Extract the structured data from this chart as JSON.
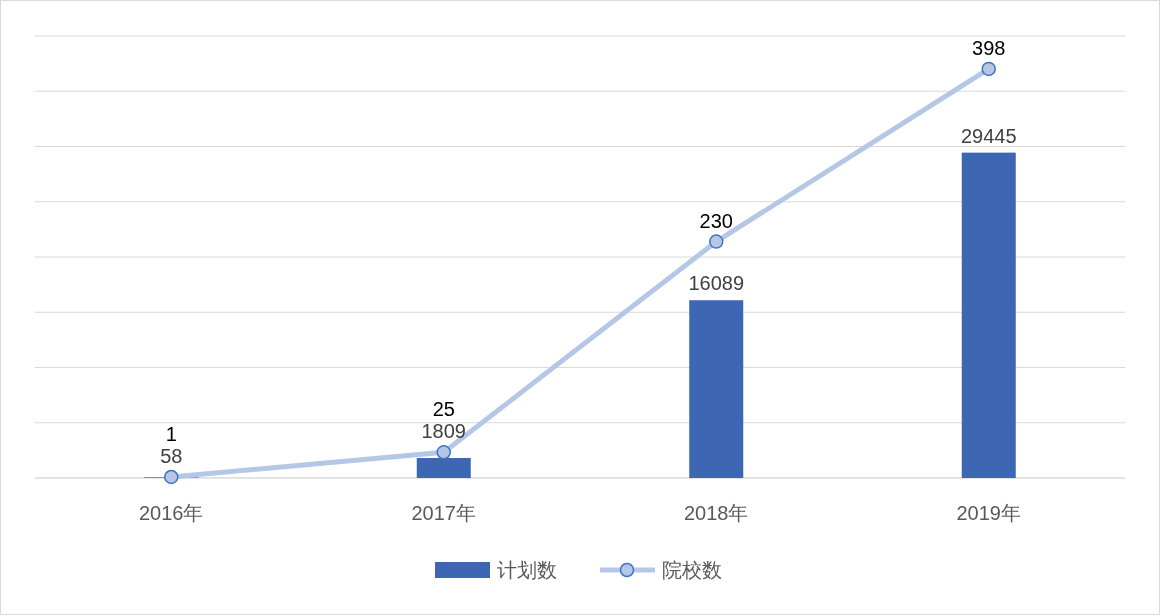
{
  "chart_data": {
    "type": "bar",
    "categories": [
      "2016年",
      "2017年",
      "2018年",
      "2019年"
    ],
    "series": [
      {
        "name": "计划数",
        "color": "#3d67b3",
        "values": [
          58,
          1809,
          16089,
          29445
        ]
      },
      {
        "name": "院校数",
        "type": "line",
        "axis": "y2",
        "color": "#b4c7e7",
        "marker": "circle",
        "values": [
          1,
          25,
          230,
          398
        ]
      }
    ],
    "ylim": [
      0,
      40000
    ],
    "yticks": [
      {
        "value": 0,
        "label": null
      },
      {
        "value": 5000,
        "label": null
      },
      {
        "value": 10000,
        "label": null
      },
      {
        "value": 15000,
        "label": null
      },
      {
        "value": 20000,
        "label": null
      },
      {
        "value": 25000,
        "label": null
      },
      {
        "value": 30000,
        "label": null
      },
      {
        "value": 35000,
        "label": null
      },
      {
        "value": 40000,
        "label": null
      }
    ],
    "y2lim": [
      0,
      430
    ],
    "grid": "y",
    "tick_labels": "x",
    "data_labels": true,
    "legend": "bottom"
  }
}
